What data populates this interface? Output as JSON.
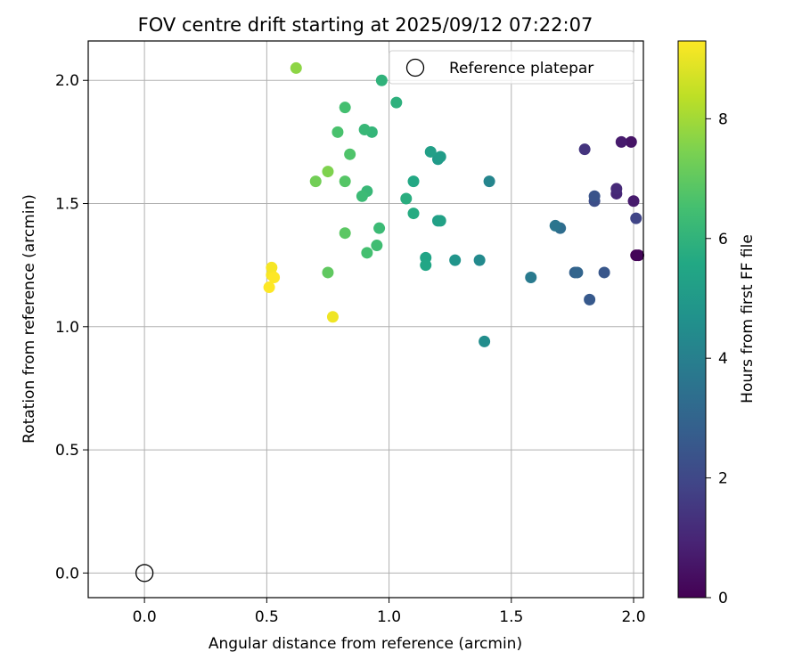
{
  "chart_data": {
    "type": "scatter",
    "title": "FOV centre drift starting at 2025/09/12 07:22:07",
    "xlabel": "Angular distance from reference (arcmin)",
    "ylabel": "Rotation from reference (arcmin)",
    "xlim": [
      -0.23,
      2.04
    ],
    "ylim": [
      -0.1,
      2.16
    ],
    "xticks": [
      "0.0",
      "0.5",
      "1.0",
      "1.5",
      "2.0"
    ],
    "yticks": [
      "0.0",
      "0.5",
      "1.0",
      "1.5",
      "2.0"
    ],
    "grid": true,
    "legend": {
      "placement": "top-right",
      "entries": [
        "Reference platepar"
      ]
    },
    "reference_point": {
      "x": 0.0,
      "y": 0.0,
      "name": "Reference platepar"
    },
    "colorbar": {
      "label": "Hours from first FF file",
      "range": [
        0,
        9.3
      ],
      "ticks": [
        "0",
        "2",
        "4",
        "6",
        "8"
      ],
      "colormap": "viridis"
    },
    "series": [
      {
        "points": [
          {
            "x": 2.01,
            "y": 1.29,
            "c": 0.05
          },
          {
            "x": 2.02,
            "y": 1.29,
            "c": 0.1
          },
          {
            "x": 1.99,
            "y": 1.75,
            "c": 0.5
          },
          {
            "x": 1.95,
            "y": 1.75,
            "c": 0.7
          },
          {
            "x": 2.0,
            "y": 1.51,
            "c": 0.7
          },
          {
            "x": 1.93,
            "y": 1.54,
            "c": 1.0
          },
          {
            "x": 1.93,
            "y": 1.56,
            "c": 1.1
          },
          {
            "x": 1.8,
            "y": 1.72,
            "c": 1.4
          },
          {
            "x": 2.01,
            "y": 1.44,
            "c": 1.9
          },
          {
            "x": 1.84,
            "y": 1.51,
            "c": 2.2
          },
          {
            "x": 1.84,
            "y": 1.53,
            "c": 2.4
          },
          {
            "x": 1.88,
            "y": 1.22,
            "c": 2.5
          },
          {
            "x": 1.82,
            "y": 1.11,
            "c": 2.6
          },
          {
            "x": 1.76,
            "y": 1.22,
            "c": 2.9
          },
          {
            "x": 1.77,
            "y": 1.22,
            "c": 3.0
          },
          {
            "x": 1.7,
            "y": 1.4,
            "c": 3.3
          },
          {
            "x": 1.68,
            "y": 1.41,
            "c": 3.6
          },
          {
            "x": 1.58,
            "y": 1.2,
            "c": 3.8
          },
          {
            "x": 1.41,
            "y": 1.59,
            "c": 4.2
          },
          {
            "x": 1.37,
            "y": 1.27,
            "c": 4.4
          },
          {
            "x": 1.39,
            "y": 0.94,
            "c": 4.5
          },
          {
            "x": 1.27,
            "y": 1.27,
            "c": 4.8
          },
          {
            "x": 1.2,
            "y": 1.68,
            "c": 5.0
          },
          {
            "x": 1.21,
            "y": 1.69,
            "c": 5.1
          },
          {
            "x": 1.17,
            "y": 1.71,
            "c": 5.2
          },
          {
            "x": 1.2,
            "y": 1.43,
            "c": 5.2
          },
          {
            "x": 1.21,
            "y": 1.43,
            "c": 5.3
          },
          {
            "x": 1.15,
            "y": 1.28,
            "c": 5.4
          },
          {
            "x": 1.15,
            "y": 1.25,
            "c": 5.5
          },
          {
            "x": 1.1,
            "y": 1.59,
            "c": 5.6
          },
          {
            "x": 1.1,
            "y": 1.46,
            "c": 5.7
          },
          {
            "x": 1.07,
            "y": 1.52,
            "c": 5.8
          },
          {
            "x": 1.03,
            "y": 1.91,
            "c": 5.9
          },
          {
            "x": 0.97,
            "y": 2.0,
            "c": 6.0
          },
          {
            "x": 0.93,
            "y": 1.79,
            "c": 6.1
          },
          {
            "x": 0.9,
            "y": 1.8,
            "c": 6.2
          },
          {
            "x": 0.91,
            "y": 1.55,
            "c": 6.2
          },
          {
            "x": 0.89,
            "y": 1.53,
            "c": 6.3
          },
          {
            "x": 0.96,
            "y": 1.4,
            "c": 6.3
          },
          {
            "x": 0.95,
            "y": 1.33,
            "c": 6.4
          },
          {
            "x": 0.91,
            "y": 1.3,
            "c": 6.5
          },
          {
            "x": 0.82,
            "y": 1.89,
            "c": 6.5
          },
          {
            "x": 0.79,
            "y": 1.79,
            "c": 6.6
          },
          {
            "x": 0.84,
            "y": 1.7,
            "c": 6.7
          },
          {
            "x": 0.82,
            "y": 1.59,
            "c": 6.8
          },
          {
            "x": 0.82,
            "y": 1.38,
            "c": 6.9
          },
          {
            "x": 0.75,
            "y": 1.22,
            "c": 7.0
          },
          {
            "x": 0.7,
            "y": 1.59,
            "c": 7.3
          },
          {
            "x": 0.75,
            "y": 1.63,
            "c": 7.5
          },
          {
            "x": 0.62,
            "y": 2.05,
            "c": 7.7
          },
          {
            "x": 0.77,
            "y": 1.04,
            "c": 9.1
          },
          {
            "x": 0.52,
            "y": 1.24,
            "c": 9.2
          },
          {
            "x": 0.52,
            "y": 1.21,
            "c": 9.2
          },
          {
            "x": 0.53,
            "y": 1.2,
            "c": 9.3
          },
          {
            "x": 0.51,
            "y": 1.16,
            "c": 9.3
          }
        ]
      }
    ]
  }
}
